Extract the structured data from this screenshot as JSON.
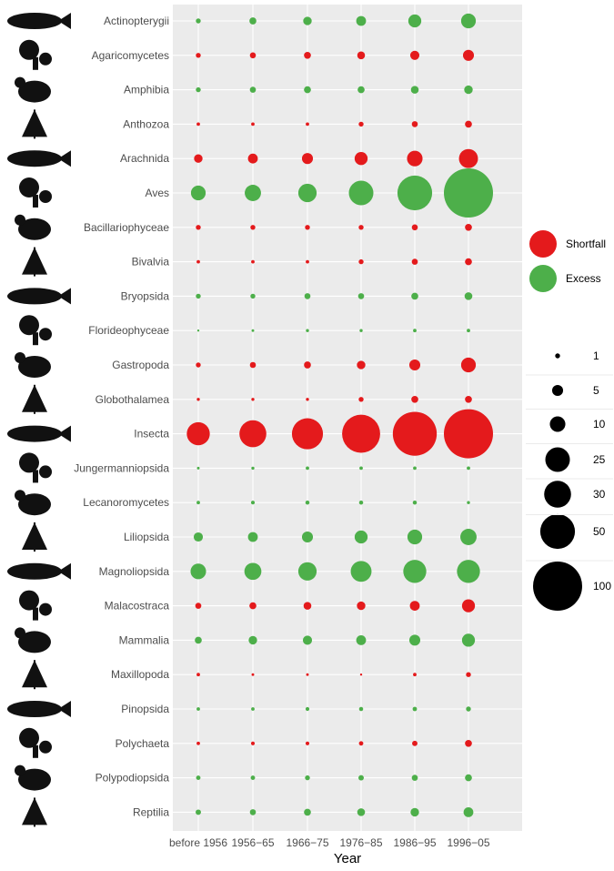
{
  "chart_data": {
    "type": "scatter",
    "subtype": "bubble",
    "title": "",
    "xlabel": "Year",
    "ylabel": "",
    "categories": [
      "before 1956",
      "1956−65",
      "1966−75",
      "1976−85",
      "1986−95",
      "1996−05"
    ],
    "taxa": [
      "Actinopterygii",
      "Agaricomycetes",
      "Amphibia",
      "Anthozoa",
      "Arachnida",
      "Aves",
      "Bacillariophyceae",
      "Bivalvia",
      "Bryopsida",
      "Florideophyceae",
      "Gastropoda",
      "Globothalamea",
      "Insecta",
      "Jungermanniopsida",
      "Lecanoromycetes",
      "Liliopsida",
      "Magnoliopsida",
      "Malacostraca",
      "Mammalia",
      "Maxillopoda",
      "Pinopsida",
      "Polychaeta",
      "Polypodiopsida",
      "Reptilia"
    ],
    "points": [
      {
        "taxon": "Actinopterygii",
        "status": "Excess",
        "values": [
          1,
          2,
          3,
          4,
          7,
          9
        ]
      },
      {
        "taxon": "Agaricomycetes",
        "status": "Shortfall",
        "values": [
          1,
          1.5,
          2,
          2.5,
          3.5,
          5
        ]
      },
      {
        "taxon": "Amphibia",
        "status": "Excess",
        "values": [
          1,
          1.5,
          2,
          2,
          2.5,
          3
        ]
      },
      {
        "taxon": "Anthozoa",
        "status": "Shortfall",
        "values": [
          0.5,
          0.5,
          0.5,
          1,
          1.5,
          2
        ]
      },
      {
        "taxon": "Arachnida",
        "status": "Shortfall",
        "values": [
          3,
          4,
          5,
          7,
          10,
          15
        ]
      },
      {
        "taxon": "Aves",
        "status": "Excess",
        "values": [
          9,
          11,
          14,
          25,
          50,
          100
        ]
      },
      {
        "taxon": "Bacillariophyceae",
        "status": "Shortfall",
        "values": [
          1,
          1,
          1,
          1,
          1.5,
          2
        ]
      },
      {
        "taxon": "Bivalvia",
        "status": "Shortfall",
        "values": [
          0.5,
          0.5,
          0.5,
          1,
          1.5,
          2
        ]
      },
      {
        "taxon": "Bryopsida",
        "status": "Excess",
        "values": [
          1,
          1,
          1.5,
          1.5,
          2,
          2.5
        ]
      },
      {
        "taxon": "Florideophyceae",
        "status": "Excess",
        "values": [
          0.2,
          0.3,
          0.4,
          0.4,
          0.5,
          0.5
        ]
      },
      {
        "taxon": "Gastropoda",
        "status": "Shortfall",
        "values": [
          1,
          1.5,
          2,
          3,
          5,
          9
        ]
      },
      {
        "taxon": "Globothalamea",
        "status": "Shortfall",
        "values": [
          0.4,
          0.4,
          0.4,
          1,
          2,
          2
        ]
      },
      {
        "taxon": "Insecta",
        "status": "Shortfall",
        "values": [
          22,
          30,
          40,
          60,
          80,
          100
        ]
      },
      {
        "taxon": "Jungermanniopsida",
        "status": "Excess",
        "values": [
          0.3,
          0.4,
          0.5,
          0.5,
          0.5,
          0.5
        ]
      },
      {
        "taxon": "Lecanoromycetes",
        "status": "Excess",
        "values": [
          0.5,
          0.6,
          0.7,
          0.7,
          0.7,
          0.4
        ]
      },
      {
        "taxon": "Liliopsida",
        "status": "Excess",
        "values": [
          3.5,
          4,
          5,
          7,
          9,
          11
        ]
      },
      {
        "taxon": "Magnoliopsida",
        "status": "Excess",
        "values": [
          10,
          12,
          14,
          18,
          22,
          22
        ]
      },
      {
        "taxon": "Malacostraca",
        "status": "Shortfall",
        "values": [
          1.5,
          2,
          2.5,
          3,
          4,
          7
        ]
      },
      {
        "taxon": "Mammalia",
        "status": "Excess",
        "values": [
          2,
          3,
          3.5,
          4,
          5,
          7
        ]
      },
      {
        "taxon": "Maxillopoda",
        "status": "Shortfall",
        "values": [
          0.5,
          0.3,
          0.3,
          0.2,
          0.5,
          1
        ]
      },
      {
        "taxon": "Pinopsida",
        "status": "Excess",
        "values": [
          0.5,
          0.5,
          0.6,
          0.7,
          0.8,
          1
        ]
      },
      {
        "taxon": "Polychaeta",
        "status": "Shortfall",
        "values": [
          0.5,
          0.6,
          0.6,
          0.8,
          1.2,
          2
        ]
      },
      {
        "taxon": "Polypodiopsida",
        "status": "Excess",
        "values": [
          0.8,
          0.8,
          1,
          1.2,
          1.5,
          2
        ]
      },
      {
        "taxon": "Reptilia",
        "status": "Excess",
        "values": [
          1.2,
          1.5,
          2,
          2.5,
          3,
          4
        ]
      }
    ],
    "legend": {
      "position": "right",
      "color": [
        {
          "label": "Shortfall",
          "color": "#e41a1c"
        },
        {
          "label": "Excess",
          "color": "#4daf4a"
        }
      ],
      "size": [
        1,
        5,
        10,
        25,
        30,
        50,
        100
      ]
    },
    "panel_background": "#ebebeb",
    "grid": true
  }
}
